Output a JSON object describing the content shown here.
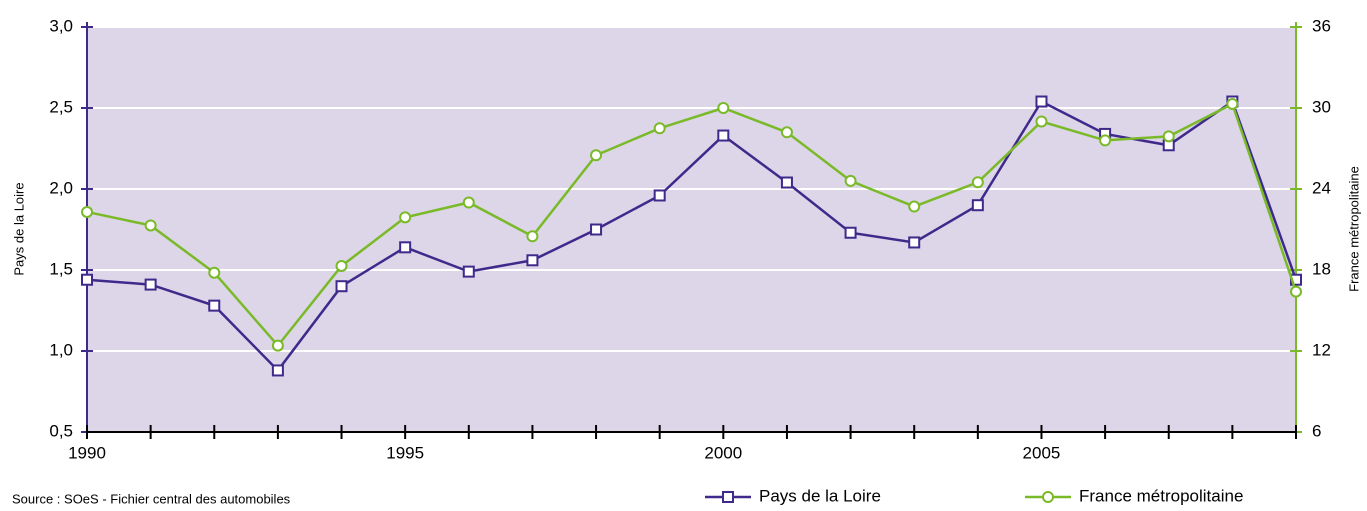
{
  "chart_data": {
    "type": "line",
    "x": [
      1990,
      1991,
      1992,
      1993,
      1994,
      1995,
      1996,
      1997,
      1998,
      1999,
      2000,
      2001,
      2002,
      2003,
      2004,
      2005,
      2006,
      2007,
      2008,
      2009
    ],
    "xlim": [
      1990,
      2009
    ],
    "xticks": [
      1990,
      1995,
      2000,
      2005
    ],
    "ylabel": "Pays de la Loire",
    "y2label": "France métropolitaine",
    "ylim": [
      0.5,
      3.0
    ],
    "yticks": [
      {
        "value": 0.5,
        "label": "0,5"
      },
      {
        "value": 1.0,
        "label": "1,0"
      },
      {
        "value": 1.5,
        "label": "1,5"
      },
      {
        "value": 2.0,
        "label": "2,0"
      },
      {
        "value": 2.5,
        "label": "2,5"
      },
      {
        "value": 3.0,
        "label": "3,0"
      }
    ],
    "y2lim": [
      6,
      36
    ],
    "y2ticks": [
      6,
      12,
      18,
      24,
      30,
      36
    ],
    "grid": true,
    "source": "Source : SOeS - Fichier central des automobiles",
    "series": [
      {
        "name": "Pays de la Loire",
        "color": "#3f2a8c",
        "marker": "square",
        "values": [
          1.44,
          1.41,
          1.28,
          0.88,
          1.4,
          1.64,
          1.49,
          1.56,
          1.75,
          1.96,
          2.33,
          2.04,
          1.73,
          1.67,
          1.9,
          2.54,
          2.34,
          2.27,
          2.54,
          1.44
        ]
      },
      {
        "name": "France métropolitaine",
        "color": "#7ab928",
        "marker": "circle",
        "axis": "y2",
        "values": [
          22.3,
          21.3,
          17.8,
          12.4,
          18.3,
          21.9,
          23.0,
          20.5,
          26.5,
          28.5,
          30.0,
          28.2,
          24.6,
          22.7,
          24.5,
          29.0,
          27.6,
          27.9,
          30.3,
          16.4
        ]
      }
    ]
  }
}
